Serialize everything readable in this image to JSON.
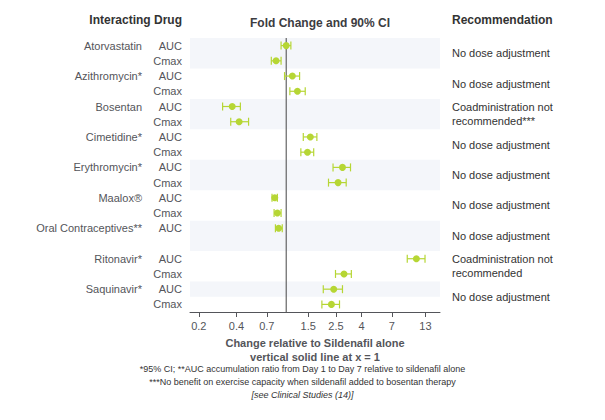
{
  "chart_data": {
    "type": "forest",
    "title": "Fold Change and 90% CI",
    "xlabel": [
      "Change relative to Sildenafil alone",
      "vertical solid line at x = 1"
    ],
    "row_header": "Interacting Drug",
    "group_header": "Recommendation",
    "log": "x",
    "grid": false,
    "xlim": [
      0.17,
      17.0
    ],
    "xticks": [
      0.2,
      0.4,
      0.7,
      1.5,
      2.5,
      4,
      7,
      13
    ],
    "vline": 1.0,
    "groups": [
      {
        "drug": "Atorvastatin",
        "recommendation": "No dose adjustment",
        "metrics": [
          "AUC",
          "Cmax"
        ],
        "values": [
          1.0,
          0.83
        ],
        "lo": [
          0.91,
          0.76
        ],
        "hi": [
          1.09,
          0.91
        ]
      },
      {
        "drug": "Azithromycin*",
        "recommendation": "No dose adjustment",
        "metrics": [
          "AUC",
          "Cmax"
        ],
        "values": [
          1.12,
          1.23
        ],
        "lo": [
          0.97,
          1.07
        ],
        "hi": [
          1.28,
          1.42
        ]
      },
      {
        "drug": "Bosentan",
        "recommendation": "Coadministration not\nrecommended***",
        "metrics": [
          "AUC",
          "Cmax"
        ],
        "values": [
          0.37,
          0.42
        ],
        "lo": [
          0.31,
          0.36
        ],
        "hi": [
          0.43,
          0.5
        ]
      },
      {
        "drug": "Cimetidine*",
        "recommendation": "No dose adjustment",
        "metrics": [
          "AUC",
          "Cmax"
        ],
        "values": [
          1.56,
          1.48
        ],
        "lo": [
          1.37,
          1.31
        ],
        "hi": [
          1.76,
          1.66
        ]
      },
      {
        "drug": "Erythromycin*",
        "recommendation": "No dose adjustment",
        "metrics": [
          "AUC",
          "Cmax"
        ],
        "values": [
          2.82,
          2.6
        ],
        "lo": [
          2.37,
          2.18
        ],
        "hi": [
          3.27,
          3.02
        ]
      },
      {
        "drug": "Maalox®",
        "recommendation": "No dose adjustment",
        "metrics": [
          "AUC",
          "Cmax"
        ],
        "values": [
          0.81,
          0.85
        ],
        "lo": [
          0.77,
          0.8
        ],
        "hi": [
          0.85,
          0.91
        ]
      },
      {
        "drug": "Oral Contraceptives**",
        "recommendation": "No dose adjustment",
        "metrics": [
          "AUC",
          null
        ],
        "values": [
          0.87,
          null
        ],
        "lo": [
          0.82,
          null
        ],
        "hi": [
          0.93,
          null
        ]
      },
      {
        "drug": "Ritonavir*",
        "recommendation": "Coadministration not\nrecommended",
        "metrics": [
          "AUC",
          "Cmax"
        ],
        "values": [
          11.0,
          2.9
        ],
        "lo": [
          9.3,
          2.48
        ],
        "hi": [
          12.9,
          3.32
        ]
      },
      {
        "drug": "Saquinavir*",
        "recommendation": "No dose adjustment",
        "metrics": [
          "AUC",
          "Cmax"
        ],
        "values": [
          2.4,
          2.3
        ],
        "lo": [
          1.98,
          1.93
        ],
        "hi": [
          2.82,
          2.67
        ]
      }
    ],
    "footnotes": [
      "*95% CI; **AUC accumulation ratio from Day 1 to Day 7 relative to sildenafil alone",
      "***No benefit on exercise capacity when sildenafil added to bosentan therapy"
    ],
    "footnote_italic": "[see Clinical Studies (14)]"
  }
}
